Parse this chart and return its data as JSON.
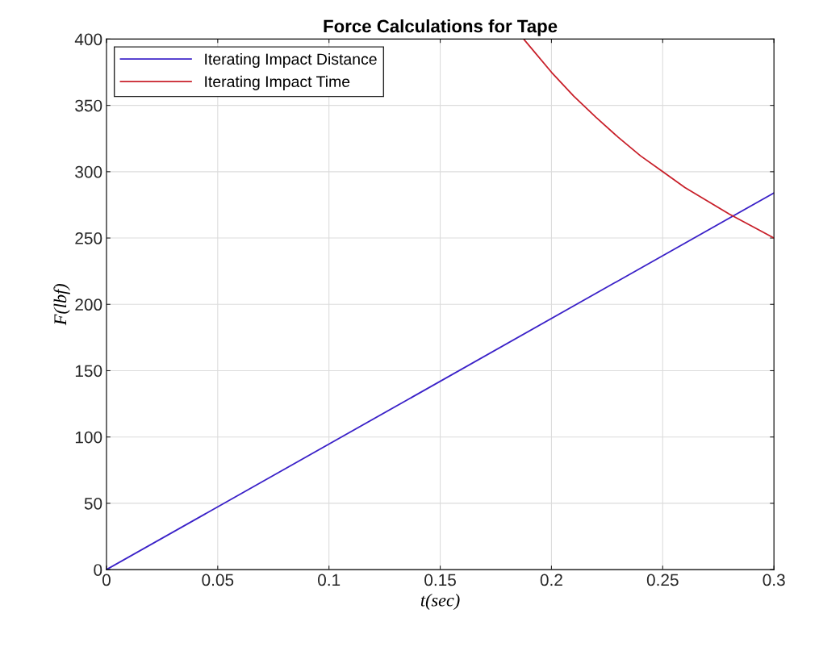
{
  "chart_data": {
    "type": "line",
    "title": "Force Calculations for Tape",
    "xlabel": "t(sec)",
    "ylabel": "F(lbf)",
    "xlim": [
      0,
      0.3
    ],
    "ylim": [
      0,
      400
    ],
    "xticks": [
      0,
      0.05,
      0.1,
      0.15,
      0.2,
      0.25,
      0.3
    ],
    "yticks": [
      0,
      50,
      100,
      150,
      200,
      250,
      300,
      350,
      400
    ],
    "grid": true,
    "legend": "top left",
    "line_style": "solid",
    "marker": "none",
    "series": [
      {
        "name": "Iterating Impact Distance",
        "color": "#3b22c8",
        "x": [
          0,
          0.3
        ],
        "values": [
          0,
          284
        ]
      },
      {
        "name": "Iterating Impact Time",
        "color": "#c8202a",
        "x": [
          0.1875,
          0.19,
          0.2,
          0.21,
          0.22,
          0.23,
          0.24,
          0.25,
          0.26,
          0.27,
          0.28,
          0.29,
          0.3
        ],
        "values": [
          400,
          395,
          375,
          357,
          341,
          326,
          312,
          300,
          288,
          278,
          268,
          259,
          250
        ]
      }
    ]
  }
}
